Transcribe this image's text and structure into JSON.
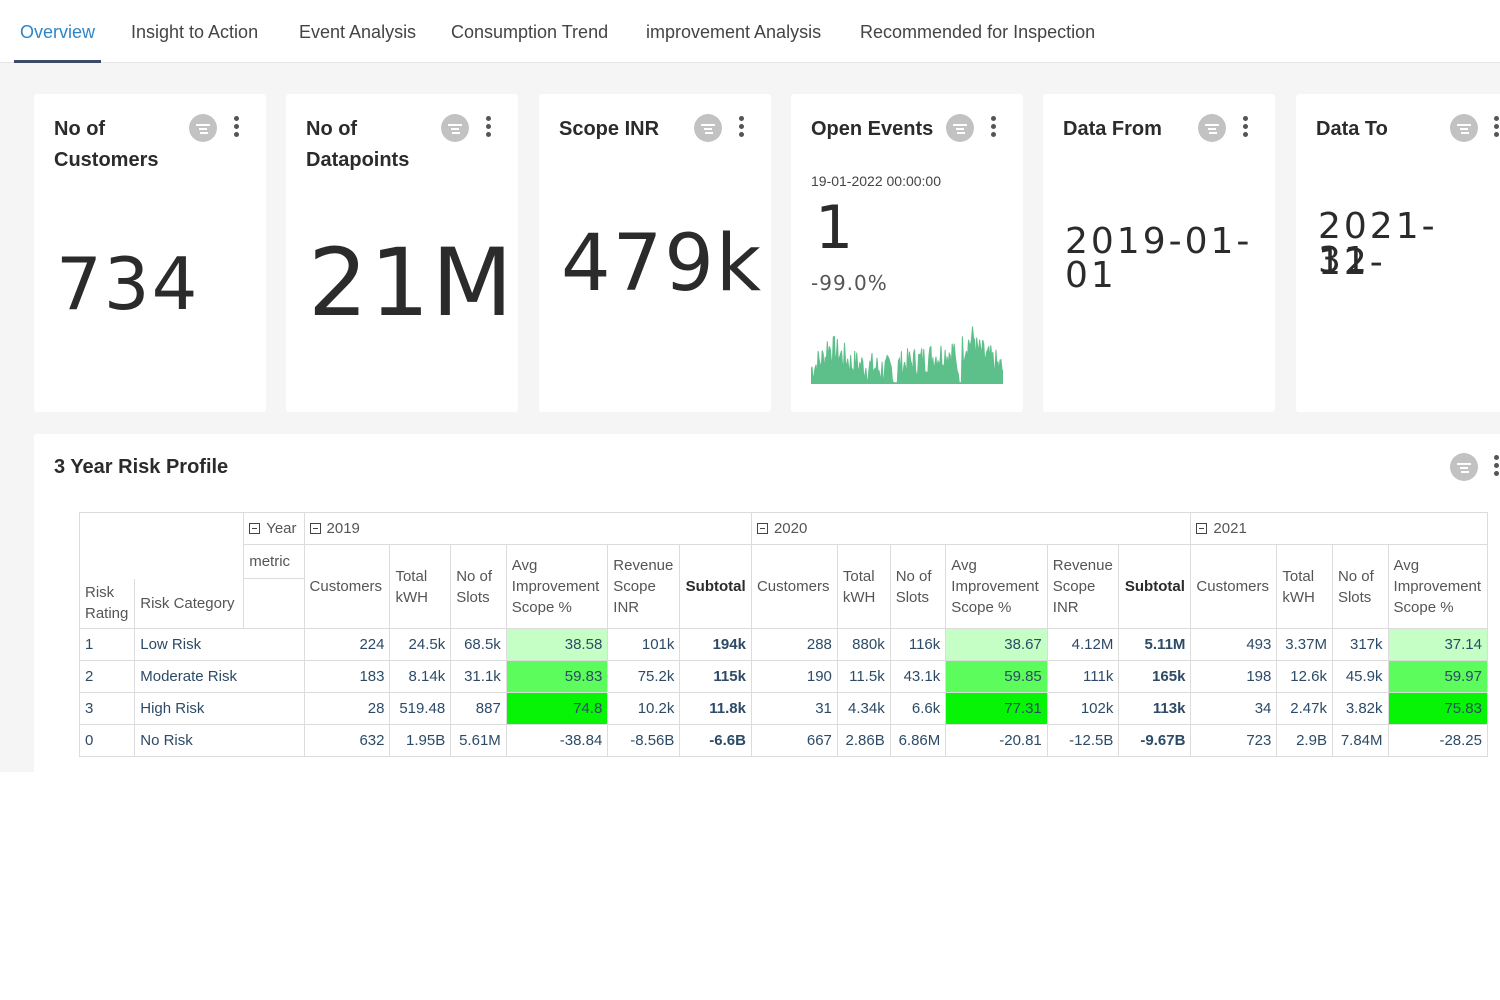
{
  "tabs": [
    {
      "label": "Overview",
      "active": true
    },
    {
      "label": "Insight to Action",
      "active": false
    },
    {
      "label": "Event Analysis",
      "active": false
    },
    {
      "label": "Consumption Trend",
      "active": false
    },
    {
      "label": "improvement Analysis",
      "active": false
    },
    {
      "label": "Recommended for Inspection",
      "active": false
    }
  ],
  "cards": {
    "customers": {
      "title": "No of Customers",
      "value": "734"
    },
    "datapoints": {
      "title": "No of Datapoints",
      "value": "21M"
    },
    "scope": {
      "title": "Scope INR",
      "value": "479k"
    },
    "events": {
      "title": "Open Events",
      "date": "19-01-2022 00:00:00",
      "value": "1",
      "change": "-99.0%",
      "spark_color": "#5dbf8a"
    },
    "data_from": {
      "title": "Data From",
      "line1": "2019-01-",
      "line2": "01"
    },
    "data_to": {
      "title": "Data To",
      "line1": "2021-12-",
      "line2": "31"
    }
  },
  "risk_profile": {
    "title": "3 Year Risk Profile",
    "year_label": "Year",
    "metric_label": "metric",
    "row_headers": [
      "Risk Rating",
      "Risk Category"
    ],
    "years": [
      "2019",
      "2020",
      "2021"
    ],
    "columns": [
      "Customers",
      "Total kWH",
      "No of Slots",
      "Avg Improvement Scope %",
      "Revenue Scope INR",
      "Subtotal"
    ],
    "rows": [
      {
        "rating": "1",
        "category": "Low Risk",
        "y2019": [
          "224",
          "24.5k",
          "68.5k",
          "38.58",
          "101k",
          "194k"
        ],
        "y2020": [
          "288",
          "880k",
          "116k",
          "38.67",
          "4.12M",
          "5.11M"
        ],
        "y2021": [
          "493",
          "3.37M",
          "317k",
          "37.14"
        ]
      },
      {
        "rating": "2",
        "category": "Moderate Risk",
        "y2019": [
          "183",
          "8.14k",
          "31.1k",
          "59.83",
          "75.2k",
          "115k"
        ],
        "y2020": [
          "190",
          "11.5k",
          "43.1k",
          "59.85",
          "111k",
          "165k"
        ],
        "y2021": [
          "198",
          "12.6k",
          "45.9k",
          "59.97"
        ]
      },
      {
        "rating": "3",
        "category": "High Risk",
        "y2019": [
          "28",
          "519.48",
          "887",
          "74.8",
          "10.2k",
          "11.8k"
        ],
        "y2020": [
          "31",
          "4.34k",
          "6.6k",
          "77.31",
          "102k",
          "113k"
        ],
        "y2021": [
          "34",
          "2.47k",
          "3.82k",
          "75.83"
        ]
      },
      {
        "rating": "0",
        "category": "No Risk",
        "y2019": [
          "632",
          "1.95B",
          "5.61M",
          "-38.84",
          "-8.56B",
          "-6.6B"
        ],
        "y2020": [
          "667",
          "2.86B",
          "6.86M",
          "-20.81",
          "-12.5B",
          "-9.67B"
        ],
        "y2021": [
          "723",
          "2.9B",
          "7.84M",
          "-28.25"
        ]
      }
    ],
    "heat_colors": {
      "low": "#c6ffc6",
      "moderate": "#5cfc5c",
      "high": "#07f407"
    }
  }
}
